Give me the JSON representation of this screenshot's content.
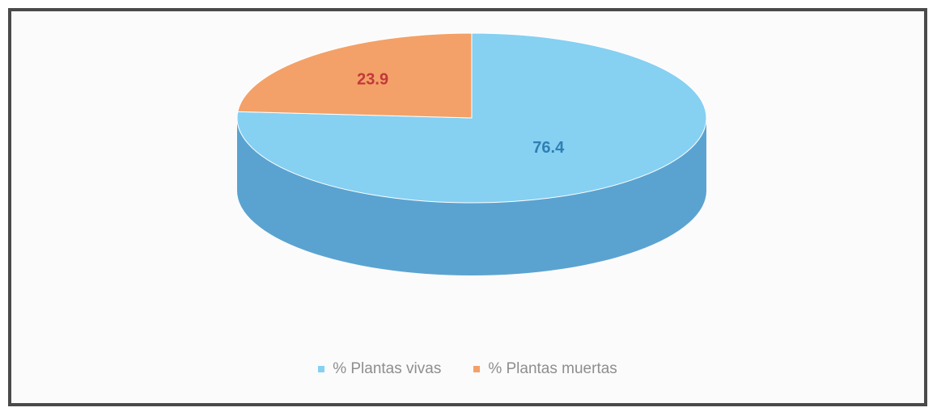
{
  "chart_data": {
    "type": "pie",
    "style": "3d",
    "categories": [
      "% Plantas vivas",
      "% Plantas muertas"
    ],
    "values": [
      76.4,
      23.9
    ],
    "value_labels": [
      "76.4",
      "23.9"
    ],
    "colors": [
      "#86d0f2",
      "#f3a168"
    ],
    "side_colors": [
      "#5aa3d1",
      "#d97a3e"
    ],
    "label_colors": [
      "#2f7fb3",
      "#c2383c"
    ],
    "legend_position": "bottom"
  }
}
